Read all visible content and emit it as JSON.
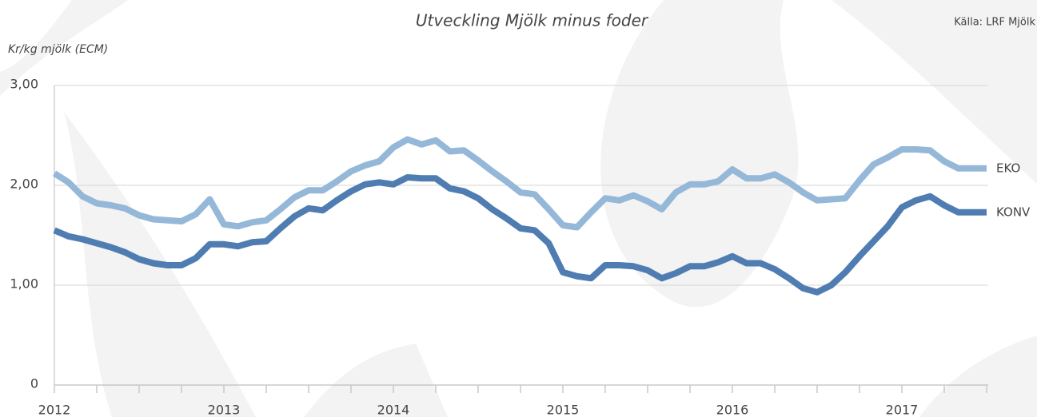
{
  "chart_data": {
    "type": "line",
    "title": "Utveckling Mjölk minus foder",
    "source": "Källa: LRF Mjölk",
    "y_label": "Kr/kg mjölk (ECM)",
    "categories": [
      "2012",
      null,
      null,
      null,
      null,
      null,
      null,
      null,
      null,
      null,
      null,
      null,
      "2013",
      null,
      null,
      null,
      null,
      null,
      null,
      null,
      null,
      null,
      null,
      null,
      "2014",
      null,
      null,
      null,
      null,
      null,
      null,
      null,
      null,
      null,
      null,
      null,
      "2015",
      null,
      null,
      null,
      null,
      null,
      null,
      null,
      null,
      null,
      null,
      null,
      "2016",
      null,
      null,
      null,
      null,
      null,
      null,
      null,
      null,
      null,
      null,
      null,
      "2017",
      null,
      null,
      null,
      null,
      null,
      null
    ],
    "series": [
      {
        "name": "EKO",
        "color": "#95b8d9",
        "values": [
          2.12,
          2.03,
          1.89,
          1.82,
          1.8,
          1.77,
          1.7,
          1.66,
          1.65,
          1.64,
          1.71,
          1.86,
          1.61,
          1.59,
          1.63,
          1.65,
          1.76,
          1.88,
          1.95,
          1.95,
          2.04,
          2.14,
          2.2,
          2.24,
          2.38,
          2.46,
          2.41,
          2.45,
          2.34,
          2.35,
          2.25,
          2.14,
          2.04,
          1.93,
          1.91,
          1.76,
          1.6,
          1.58,
          1.73,
          1.87,
          1.85,
          1.9,
          1.84,
          1.76,
          1.93,
          2.01,
          2.01,
          2.04,
          2.16,
          2.07,
          2.07,
          2.11,
          2.03,
          1.93,
          1.85,
          1.86,
          1.87,
          2.05,
          2.21,
          2.28,
          2.36,
          2.36,
          2.35,
          2.24,
          2.17,
          2.17,
          2.17
        ]
      },
      {
        "name": "KONV",
        "color": "#4f7db2",
        "values": [
          1.55,
          1.49,
          1.46,
          1.42,
          1.38,
          1.33,
          1.26,
          1.22,
          1.2,
          1.2,
          1.27,
          1.41,
          1.41,
          1.39,
          1.43,
          1.44,
          1.57,
          1.69,
          1.77,
          1.75,
          1.85,
          1.94,
          2.01,
          2.03,
          2.01,
          2.08,
          2.07,
          2.07,
          1.97,
          1.94,
          1.87,
          1.76,
          1.67,
          1.57,
          1.55,
          1.42,
          1.13,
          1.09,
          1.07,
          1.2,
          1.2,
          1.19,
          1.15,
          1.07,
          1.12,
          1.19,
          1.19,
          1.23,
          1.29,
          1.22,
          1.22,
          1.16,
          1.07,
          0.97,
          0.93,
          1.0,
          1.13,
          1.29,
          1.44,
          1.59,
          1.78,
          1.85,
          1.89,
          1.8,
          1.73,
          1.73,
          1.73
        ]
      }
    ],
    "ylim": [
      0,
      3
    ],
    "yticks": [
      0,
      {
        "value": 1,
        "label": "1,00"
      },
      {
        "value": 2,
        "label": "2,00"
      },
      {
        "value": 3,
        "label": "3,00"
      }
    ],
    "grid": true
  }
}
